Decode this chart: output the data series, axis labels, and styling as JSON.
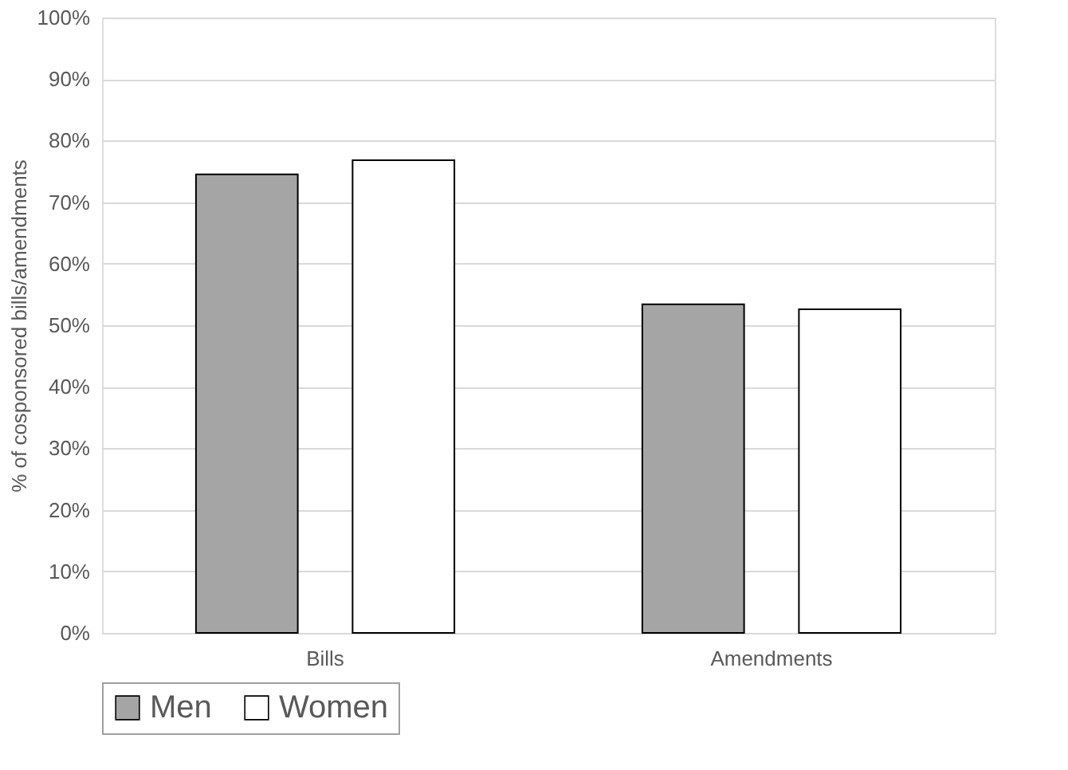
{
  "chart_data": {
    "type": "bar",
    "ylabel": "% of cosponsored bills/amendments",
    "categories": [
      "Bills",
      "Amendments"
    ],
    "series": [
      {
        "name": "Men",
        "color": "#a5a5a5",
        "values": [
          74.5,
          53.4
        ]
      },
      {
        "name": "Women",
        "color": "#ffffff",
        "values": [
          76.8,
          52.6
        ]
      }
    ],
    "ylim": [
      0,
      100
    ],
    "yticks": [
      {
        "value": 0,
        "label": "0%"
      },
      {
        "value": 10,
        "label": "10%"
      },
      {
        "value": 20,
        "label": "20%"
      },
      {
        "value": 30,
        "label": "30%"
      },
      {
        "value": 40,
        "label": "40%"
      },
      {
        "value": 50,
        "label": "50%"
      },
      {
        "value": 60,
        "label": "60%"
      },
      {
        "value": 70,
        "label": "70%"
      },
      {
        "value": 80,
        "label": "80%"
      },
      {
        "value": 90,
        "label": "90%"
      },
      {
        "value": 100,
        "label": "100%"
      }
    ],
    "grid": "y",
    "legend": "bottom"
  }
}
